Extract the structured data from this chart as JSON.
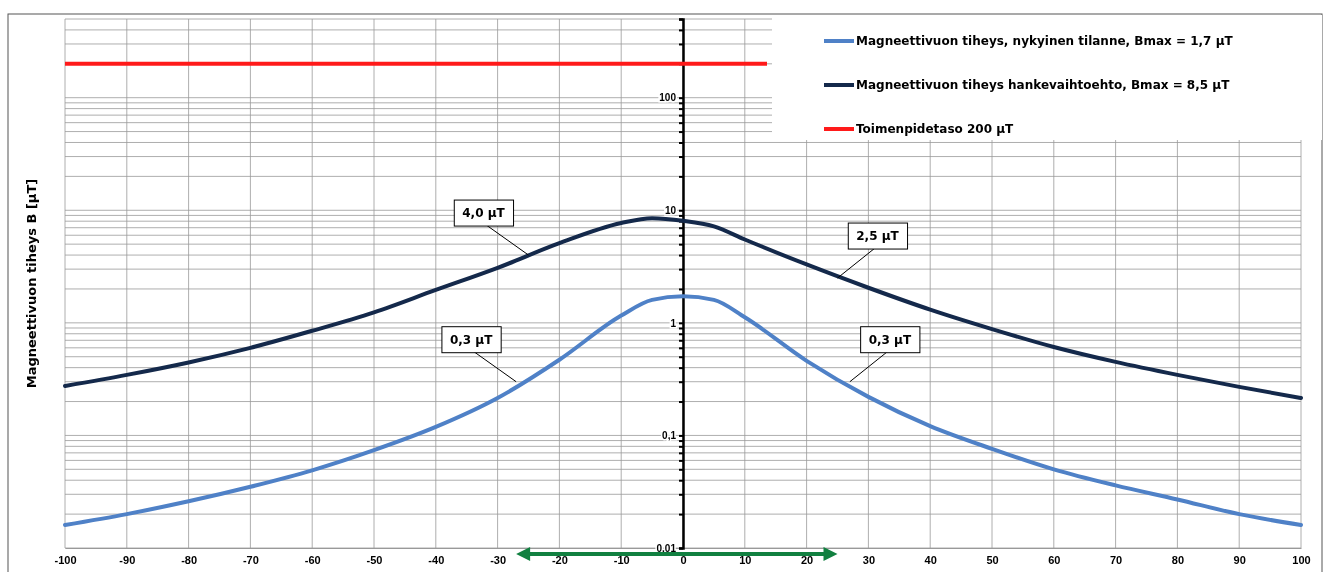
{
  "chart_data": {
    "type": "line",
    "ylabel": "Magneettivuon tiheys B [µT]",
    "log": "y",
    "grid": true,
    "legend": "top right",
    "line_style": "solid",
    "marker": "none",
    "x": [
      -100,
      -90,
      -80,
      -70,
      -60,
      -50,
      -40,
      -30,
      -20,
      -10,
      -5,
      0,
      5,
      10,
      20,
      30,
      40,
      50,
      60,
      70,
      80,
      90,
      100
    ],
    "series": [
      {
        "name": "Magneettivuon tiheys, nykyinen tilanne, Bmax = 1,7 µT",
        "color": "#4f81c7",
        "values": [
          0.016,
          0.02,
          0.026,
          0.035,
          0.049,
          0.074,
          0.119,
          0.215,
          0.47,
          1.16,
          1.6,
          1.72,
          1.6,
          1.12,
          0.46,
          0.22,
          0.121,
          0.076,
          0.05,
          0.036,
          0.027,
          0.02,
          0.016
        ]
      },
      {
        "name": "Magneettivuon tiheys hankevaihtoehto, Bmax = 8,5 µT",
        "color": "#14294b",
        "values": [
          0.275,
          0.345,
          0.445,
          0.6,
          0.85,
          1.24,
          1.96,
          3.08,
          5.1,
          7.7,
          8.5,
          8.07,
          7.2,
          5.5,
          3.3,
          2.05,
          1.31,
          0.88,
          0.61,
          0.45,
          0.345,
          0.27,
          0.215
        ]
      }
    ],
    "ref_lines": [
      {
        "axis": "y",
        "value": 200,
        "label": "Toimenpidetaso 200 µT",
        "color": "#ff1a1a"
      }
    ],
    "annotations": [
      {
        "text": "4,0 µT",
        "x": -25,
        "y": 4.0
      },
      {
        "text": "2,5 µT",
        "x": 25,
        "y": 2.5
      },
      {
        "text": "0,3 µT",
        "x": -27,
        "y": 0.3
      },
      {
        "text": "0,3 µT",
        "x": 27,
        "y": 0.3
      }
    ],
    "xlim": [
      -100,
      100
    ],
    "xticks": [
      -100,
      -90,
      -80,
      -70,
      -60,
      -50,
      -40,
      -30,
      -20,
      -10,
      0,
      10,
      20,
      30,
      40,
      50,
      60,
      70,
      80,
      90,
      100
    ],
    "ylim": [
      0.01,
      500
    ],
    "yticks": [
      {
        "value": 0.01,
        "label": "0,01"
      },
      {
        "value": 0.02,
        "label": null
      },
      {
        "value": 0.03,
        "label": null
      },
      {
        "value": 0.04,
        "label": null
      },
      {
        "value": 0.05,
        "label": null
      },
      {
        "value": 0.06,
        "label": null
      },
      {
        "value": 0.07,
        "label": null
      },
      {
        "value": 0.08,
        "label": null
      },
      {
        "value": 0.09,
        "label": null
      },
      {
        "value": 0.1,
        "label": "0,1"
      },
      {
        "value": 0.2,
        "label": null
      },
      {
        "value": 0.3,
        "label": null
      },
      {
        "value": 0.4,
        "label": null
      },
      {
        "value": 0.5,
        "label": null
      },
      {
        "value": 0.6,
        "label": null
      },
      {
        "value": 0.7,
        "label": null
      },
      {
        "value": 0.8,
        "label": null
      },
      {
        "value": 0.9,
        "label": null
      },
      1,
      {
        "value": 2,
        "label": null
      },
      {
        "value": 3,
        "label": null
      },
      {
        "value": 4,
        "label": null
      },
      {
        "value": 5,
        "label": null
      },
      {
        "value": 6,
        "label": null
      },
      {
        "value": 7,
        "label": null
      },
      {
        "value": 8,
        "label": null
      },
      {
        "value": 9,
        "label": null
      },
      10,
      {
        "value": 20,
        "label": null
      },
      {
        "value": 30,
        "label": null
      },
      {
        "value": 40,
        "label": null
      },
      {
        "value": 50,
        "label": null
      },
      {
        "value": 60,
        "label": null
      },
      {
        "value": 70,
        "label": null
      },
      {
        "value": 80,
        "label": null
      },
      {
        "value": 90,
        "label": null
      },
      100,
      {
        "value": 200,
        "label": null
      },
      {
        "value": 300,
        "label": null
      },
      {
        "value": 400,
        "label": null
      },
      {
        "value": 500,
        "label": null
      }
    ]
  }
}
